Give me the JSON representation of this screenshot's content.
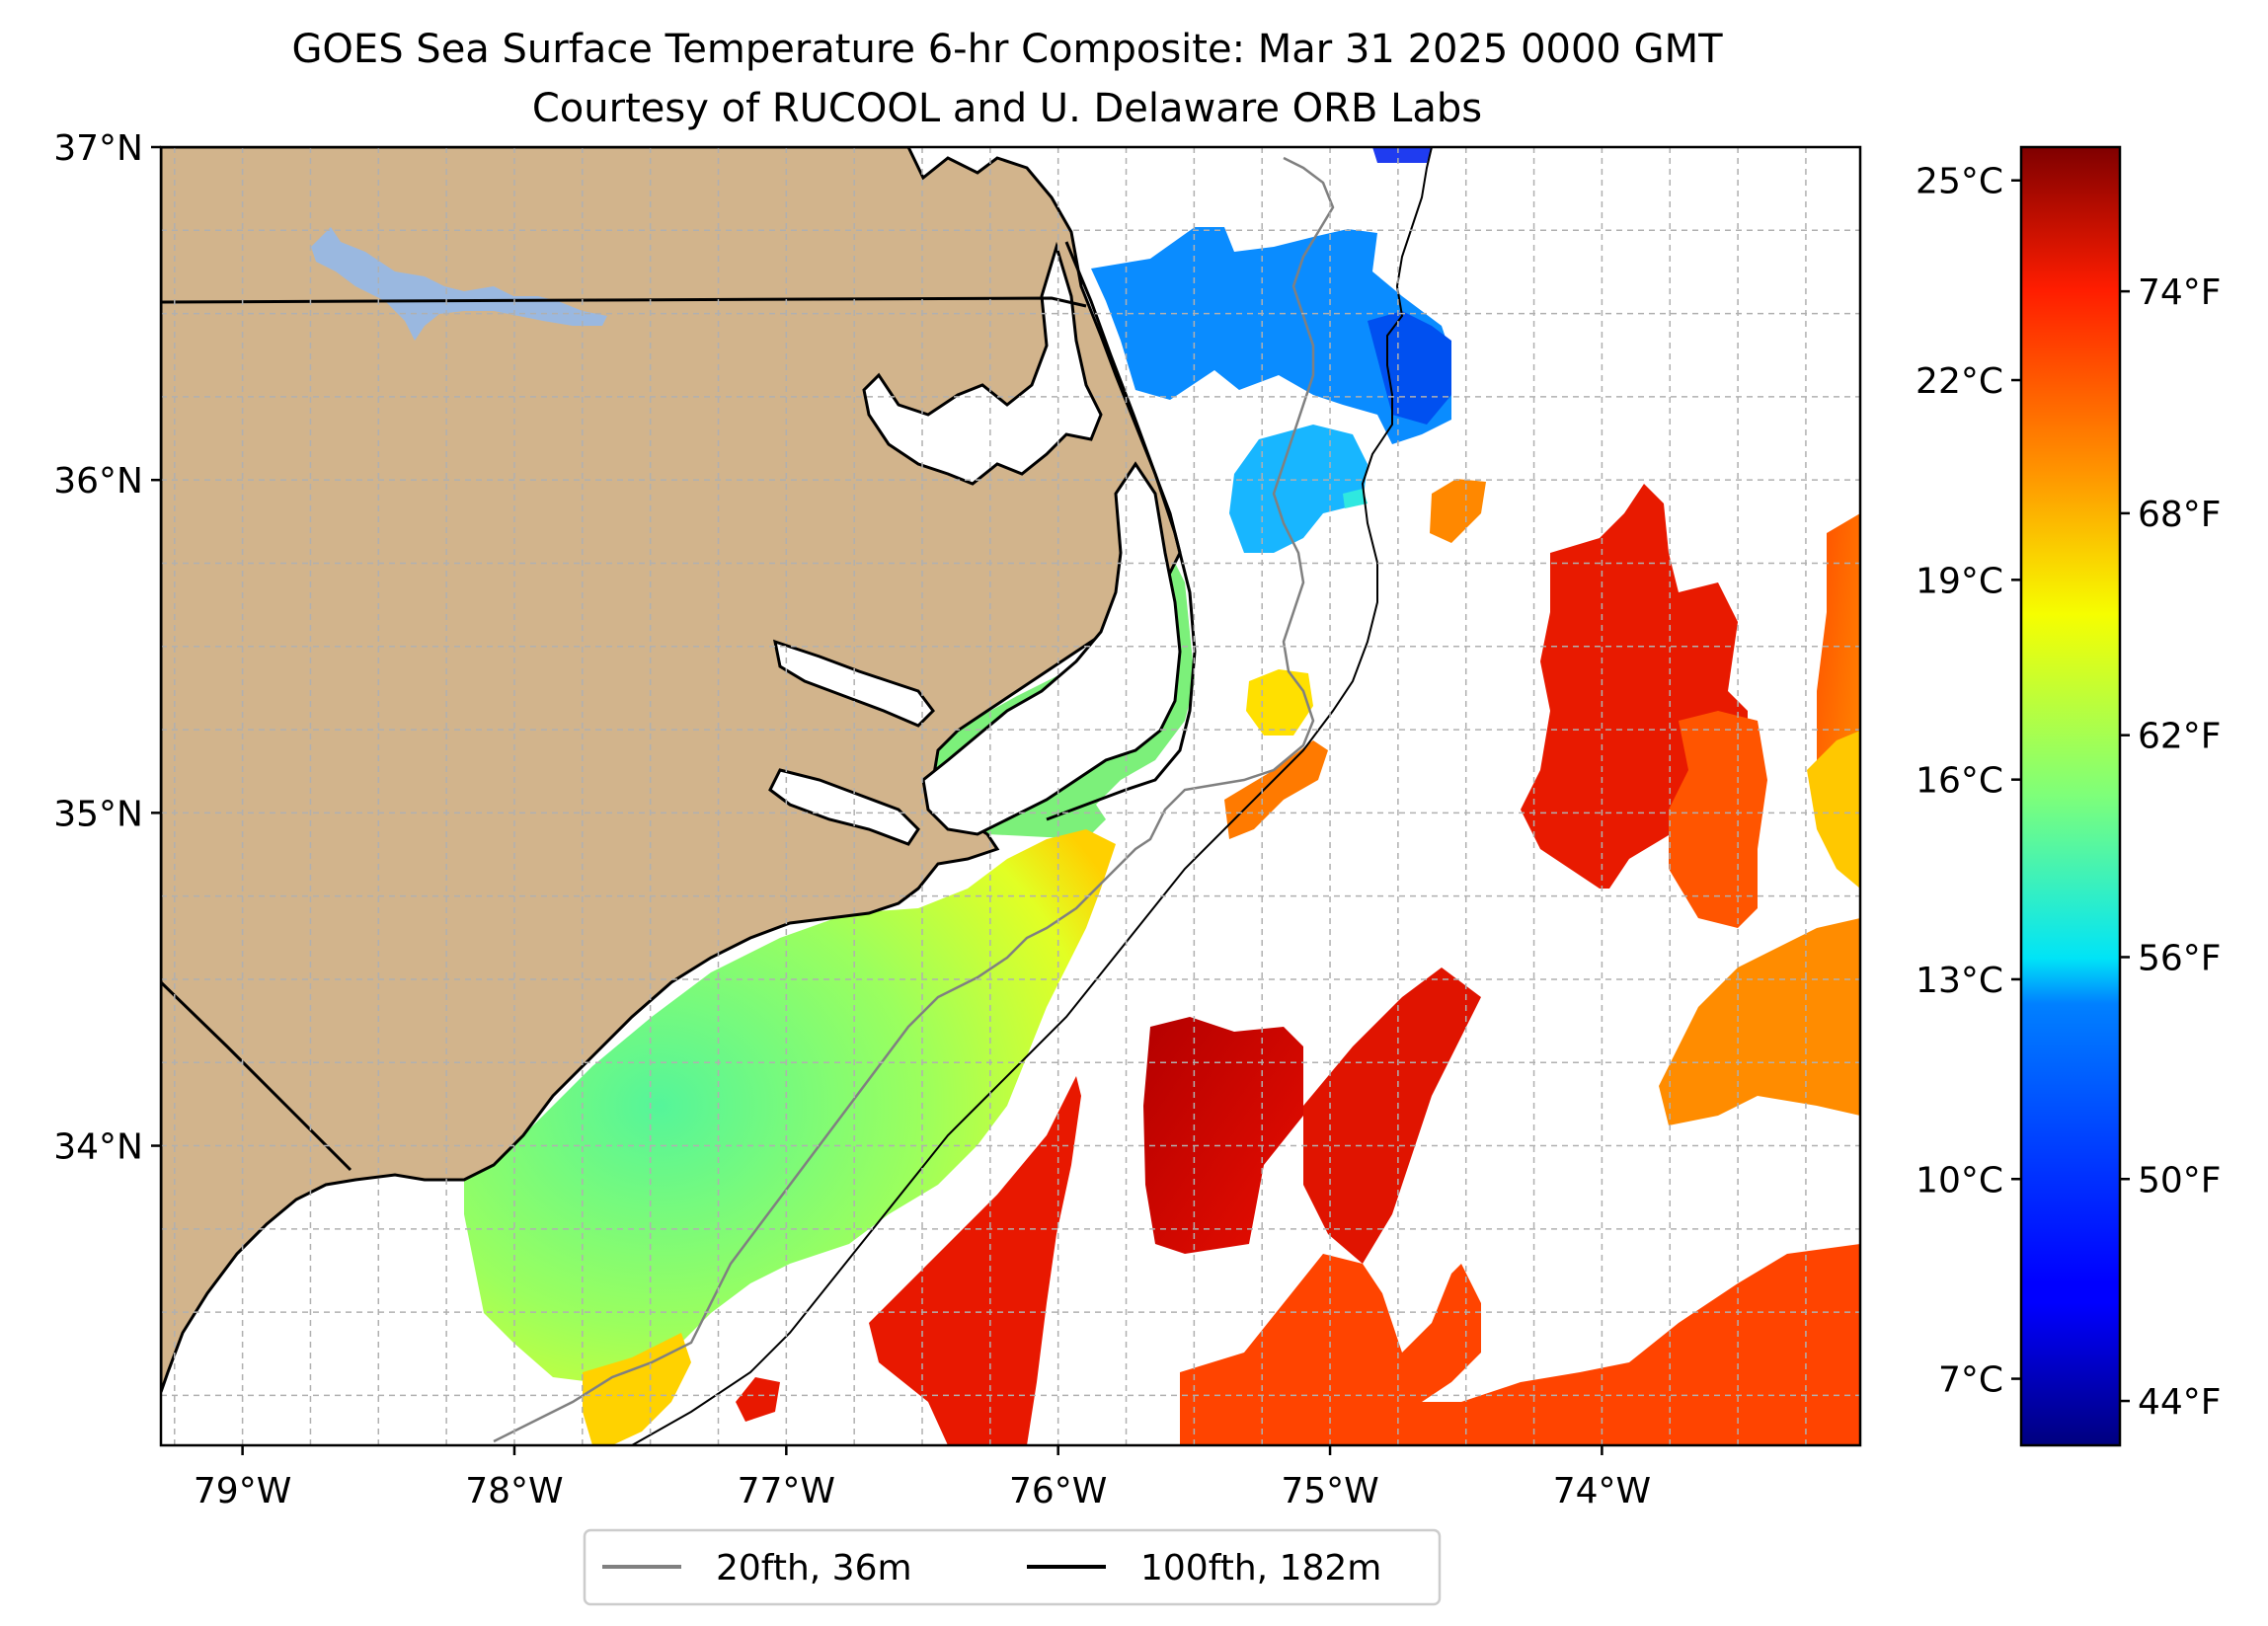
{
  "title": {
    "line1": "GOES Sea Surface Temperature 6-hr Composite: Mar 31 2025 0000 GMT",
    "line2": "Courtesy of RUCOOL and U. Delaware ORB Labs"
  },
  "map": {
    "lon_range": [
      -79.3,
      -73.05
    ],
    "lat_range": [
      33.1,
      37.0
    ],
    "grid": true,
    "lat_ticks": [
      {
        "value": 37,
        "label": "37°N"
      },
      {
        "value": 36,
        "label": "36°N"
      },
      {
        "value": 35,
        "label": "35°N"
      },
      {
        "value": 34,
        "label": "34°N"
      }
    ],
    "lon_ticks": [
      {
        "value": -79,
        "label": "79°W"
      },
      {
        "value": -78,
        "label": "78°W"
      },
      {
        "value": -77,
        "label": "77°W"
      },
      {
        "value": -76,
        "label": "76°W"
      },
      {
        "value": -75,
        "label": "75°W"
      },
      {
        "value": -74,
        "label": "74°W"
      }
    ],
    "colors": {
      "land": "#d2b48c",
      "lake": "#9ab8e0",
      "coast": "#000000",
      "isobath_20": "#808080",
      "isobath_100": "#000000",
      "grid": "#b0b0b0"
    }
  },
  "colorbar": {
    "colormap": "jet",
    "range_c": [
      6.0,
      25.5
    ],
    "celsius_ticks": [
      {
        "value": 25,
        "label": "25°C"
      },
      {
        "value": 22,
        "label": "22°C"
      },
      {
        "value": 19,
        "label": "19°C"
      },
      {
        "value": 16,
        "label": "16°C"
      },
      {
        "value": 13,
        "label": "13°C"
      },
      {
        "value": 10,
        "label": "10°C"
      },
      {
        "value": 7,
        "label": "7°C"
      }
    ],
    "fahrenheit_ticks": [
      {
        "value": 74,
        "label": "74°F"
      },
      {
        "value": 68,
        "label": "68°F"
      },
      {
        "value": 62,
        "label": "62°F"
      },
      {
        "value": 56,
        "label": "56°F"
      },
      {
        "value": 50,
        "label": "50°F"
      },
      {
        "value": 44,
        "label": "44°F"
      }
    ]
  },
  "legend": {
    "position": "bottom-center",
    "entries": [
      {
        "label": "20fth, 36m",
        "color": "#808080"
      },
      {
        "label": "100fth, 182m",
        "color": "#000000"
      }
    ]
  }
}
